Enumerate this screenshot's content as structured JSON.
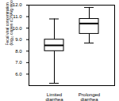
{
  "chart_data": {
    "type": "box",
    "categories": [
      "Limited diarrhea",
      "Prolonged diarrhea"
    ],
    "boxes": [
      {
        "median": 8.5,
        "q1": 8.0,
        "q3": 9.0,
        "whisker_low": 5.2,
        "whisker_high": 10.8
      },
      {
        "median": 10.4,
        "q1": 9.5,
        "q3": 10.8,
        "whisker_low": 8.7,
        "whisker_high": 11.8
      }
    ],
    "ylim": [
      5,
      12
    ],
    "yticks": [
      6,
      7,
      8,
      9,
      10,
      11,
      12
    ],
    "ylabel": "Fecal viral concentration (log₁₀ copies cDNA/g stool)"
  }
}
